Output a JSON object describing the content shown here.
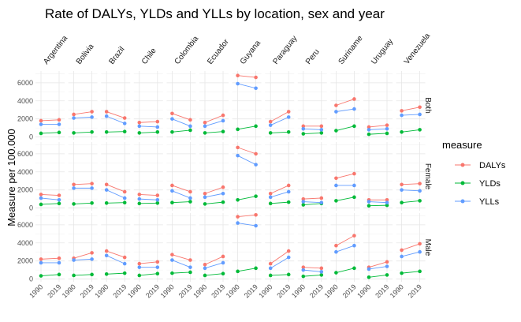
{
  "chart_data": {
    "type": "line",
    "title": "Rate of DALYs, YLDs and YLLs by location, sex and year",
    "ylabel": "Measure per 100.000",
    "xlabel": "",
    "x": [
      "1990",
      "2019"
    ],
    "y_ticks": [
      "0",
      "2000",
      "4000",
      "6000"
    ],
    "ylim": [
      -300,
      7300
    ],
    "grid": true,
    "legend": {
      "title": "measure",
      "position": "right",
      "items": [
        {
          "name": "DALYs",
          "color": "#F8766D"
        },
        {
          "name": "YLDs",
          "color": "#00BA38"
        },
        {
          "name": "YLLs",
          "color": "#619CFF"
        }
      ]
    },
    "locations": [
      "Argentina",
      "Bolivia",
      "Brazil",
      "Chile",
      "Colombia",
      "Ecuador",
      "Guyana",
      "Paraguay",
      "Peru",
      "Suriname",
      "Uruguay",
      "Venezuela"
    ],
    "sexes": [
      "Both",
      "Female",
      "Male"
    ],
    "panels": {
      "Both": {
        "Argentina": {
          "DALYs": [
            1800,
            1900
          ],
          "YLDs": [
            400,
            500
          ],
          "YLLs": [
            1400,
            1400
          ]
        },
        "Bolivia": {
          "DALYs": [
            2500,
            2800
          ],
          "YLDs": [
            450,
            550
          ],
          "YLLs": [
            2100,
            2200
          ]
        },
        "Brazil": {
          "DALYs": [
            2800,
            2100
          ],
          "YLDs": [
            550,
            600
          ],
          "YLLs": [
            2300,
            1500
          ]
        },
        "Chile": {
          "DALYs": [
            1600,
            1700
          ],
          "YLDs": [
            450,
            550
          ],
          "YLLs": [
            1200,
            1100
          ]
        },
        "Colombia": {
          "DALYs": [
            2600,
            1900
          ],
          "YLDs": [
            550,
            750
          ],
          "YLLs": [
            2000,
            1200
          ]
        },
        "Ecuador": {
          "DALYs": [
            1600,
            2400
          ],
          "YLDs": [
            450,
            600
          ],
          "YLLs": [
            1200,
            1800
          ]
        },
        "Guyana": {
          "DALYs": [
            6800,
            6600
          ],
          "YLDs": [
            850,
            1200
          ],
          "YLLs": [
            5900,
            5400
          ]
        },
        "Paraguay": {
          "DALYs": [
            1700,
            2800
          ],
          "YLDs": [
            450,
            550
          ],
          "YLLs": [
            1300,
            2200
          ]
        },
        "Peru": {
          "DALYs": [
            1200,
            1200
          ],
          "YLDs": [
            350,
            450
          ],
          "YLLs": [
            900,
            800
          ]
        },
        "Suriname": {
          "DALYs": [
            3500,
            4200
          ],
          "YLDs": [
            700,
            1200
          ],
          "YLLs": [
            2800,
            3100
          ]
        },
        "Uruguay": {
          "DALYs": [
            1100,
            1300
          ],
          "YLDs": [
            300,
            400
          ],
          "YLLs": [
            800,
            900
          ]
        },
        "Venezuela": {
          "DALYs": [
            2900,
            3300
          ],
          "YLDs": [
            550,
            800
          ],
          "YLLs": [
            2400,
            2500
          ]
        }
      },
      "Female": {
        "Argentina": {
          "DALYs": [
            1500,
            1400
          ],
          "YLDs": [
            400,
            500
          ],
          "YLLs": [
            1100,
            900
          ]
        },
        "Bolivia": {
          "DALYs": [
            2600,
            2700
          ],
          "YLDs": [
            450,
            550
          ],
          "YLLs": [
            2200,
            2200
          ]
        },
        "Brazil": {
          "DALYs": [
            2600,
            1800
          ],
          "YLDs": [
            550,
            600
          ],
          "YLLs": [
            2000,
            1100
          ]
        },
        "Chile": {
          "DALYs": [
            1500,
            1400
          ],
          "YLDs": [
            500,
            550
          ],
          "YLLs": [
            1000,
            900
          ]
        },
        "Colombia": {
          "DALYs": [
            2500,
            1800
          ],
          "YLDs": [
            600,
            700
          ],
          "YLLs": [
            1900,
            1100
          ]
        },
        "Ecuador": {
          "DALYs": [
            1600,
            2300
          ],
          "YLDs": [
            450,
            650
          ],
          "YLLs": [
            1200,
            1600
          ]
        },
        "Guyana": {
          "DALYs": [
            6700,
            6000
          ],
          "YLDs": [
            900,
            1300
          ],
          "YLLs": [
            5800,
            4800
          ]
        },
        "Paraguay": {
          "DALYs": [
            1600,
            2500
          ],
          "YLDs": [
            500,
            650
          ],
          "YLLs": [
            1200,
            1800
          ]
        },
        "Peru": {
          "DALYs": [
            1000,
            1100
          ],
          "YLDs": [
            350,
            500
          ],
          "YLLs": [
            700,
            600
          ]
        },
        "Suriname": {
          "DALYs": [
            3300,
            3800
          ],
          "YLDs": [
            800,
            1200
          ],
          "YLLs": [
            2500,
            2500
          ]
        },
        "Uruguay": {
          "DALYs": [
            900,
            900
          ],
          "YLDs": [
            250,
            300
          ],
          "YLLs": [
            700,
            600
          ]
        },
        "Venezuela": {
          "DALYs": [
            2600,
            2700
          ],
          "YLDs": [
            600,
            800
          ],
          "YLLs": [
            2000,
            1900
          ]
        }
      },
      "Male": {
        "Argentina": {
          "DALYs": [
            2200,
            2300
          ],
          "YLDs": [
            350,
            500
          ],
          "YLLs": [
            1800,
            1800
          ]
        },
        "Bolivia": {
          "DALYs": [
            2300,
            2900
          ],
          "YLDs": [
            400,
            500
          ],
          "YLLs": [
            2100,
            2200
          ]
        },
        "Brazil": {
          "DALYs": [
            3100,
            2400
          ],
          "YLDs": [
            550,
            650
          ],
          "YLLs": [
            2600,
            1700
          ]
        },
        "Chile": {
          "DALYs": [
            1700,
            1900
          ],
          "YLDs": [
            400,
            600
          ],
          "YLLs": [
            1300,
            1300
          ]
        },
        "Colombia": {
          "DALYs": [
            2700,
            2100
          ],
          "YLDs": [
            650,
            750
          ],
          "YLLs": [
            2100,
            1300
          ]
        },
        "Ecuador": {
          "DALYs": [
            1600,
            2500
          ],
          "YLDs": [
            400,
            600
          ],
          "YLLs": [
            1200,
            1800
          ]
        },
        "Guyana": {
          "DALYs": [
            6900,
            7100
          ],
          "YLDs": [
            850,
            1200
          ],
          "YLLs": [
            6200,
            5900
          ]
        },
        "Paraguay": {
          "DALYs": [
            1700,
            3100
          ],
          "YLDs": [
            400,
            500
          ],
          "YLLs": [
            1200,
            2400
          ]
        },
        "Peru": {
          "DALYs": [
            1300,
            1200
          ],
          "YLDs": [
            300,
            450
          ],
          "YLLs": [
            1000,
            800
          ]
        },
        "Suriname": {
          "DALYs": [
            3700,
            4800
          ],
          "YLDs": [
            700,
            1200
          ],
          "YLLs": [
            3000,
            3700
          ]
        },
        "Uruguay": {
          "DALYs": [
            1300,
            1900
          ],
          "YLDs": [
            200,
            450
          ],
          "YLLs": [
            1100,
            1400
          ]
        },
        "Venezuela": {
          "DALYs": [
            3200,
            3900
          ],
          "YLDs": [
            650,
            850
          ],
          "YLLs": [
            2500,
            3000
          ]
        }
      }
    }
  }
}
